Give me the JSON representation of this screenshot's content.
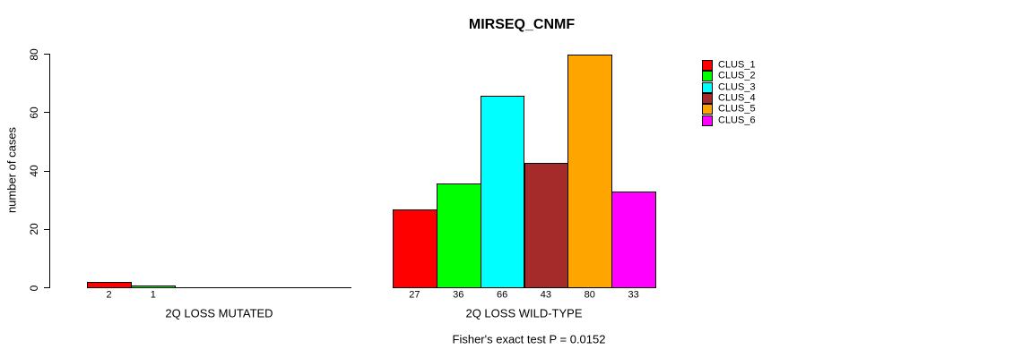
{
  "chart_data": {
    "type": "bar",
    "title": "MIRSEQ_CNMF",
    "ylabel": "number of cases",
    "xlabel": "",
    "ylim": [
      0,
      80
    ],
    "yticks": [
      0,
      20,
      40,
      60,
      80
    ],
    "grid": false,
    "legend_position": "right-outside",
    "categories": [
      "2Q LOSS MUTATED",
      "2Q LOSS WILD-TYPE"
    ],
    "series": [
      {
        "name": "CLUS_1",
        "color": "#FF0000",
        "values": [
          2,
          27
        ]
      },
      {
        "name": "CLUS_2",
        "color": "#00FF00",
        "values": [
          1,
          36
        ]
      },
      {
        "name": "CLUS_3",
        "color": "#00FFFF",
        "values": [
          0,
          66
        ]
      },
      {
        "name": "CLUS_4",
        "color": "#A52A2A",
        "values": [
          0,
          43
        ]
      },
      {
        "name": "CLUS_5",
        "color": "#FFA500",
        "values": [
          0,
          80
        ]
      },
      {
        "name": "CLUS_6",
        "color": "#FF00FF",
        "values": [
          0,
          33
        ]
      }
    ],
    "bar_value_labels": [
      [
        2,
        1
      ],
      [
        27,
        36,
        66,
        43,
        80,
        33
      ]
    ],
    "footnote": "Fisher's exact test P = 0.0152",
    "text_color": "#000000",
    "axis_color": "#000000"
  }
}
